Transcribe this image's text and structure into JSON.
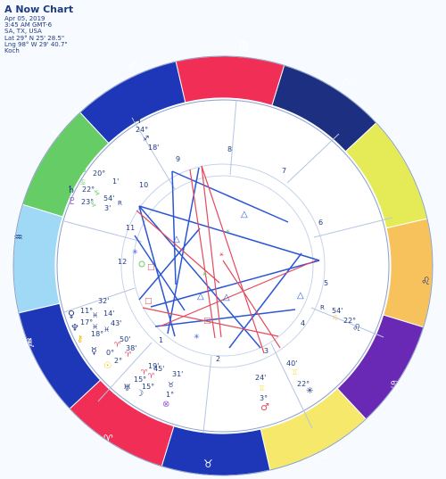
{
  "header": {
    "title": "A Now Chart",
    "date": "Apr 05, 2019",
    "time": "3:45 AM GMT-6",
    "place": "SA, TX, USA",
    "lat": "Lat 29° N 25' 28.5\"",
    "lng": "Lng 98° W 29' 40.7\"",
    "system": "Koch"
  },
  "colors": {
    "background": "#f7fbff",
    "ring_background": "#ffffff",
    "line": "#8ea1c7",
    "blue_aspect": "#2b56d4",
    "red_aspect": "#e24b5b",
    "text": "#1f3b80",
    "aries": "#f02e56",
    "taurus": "#1e36b8",
    "gemini": "#f6e86a",
    "cancer": "#6929b5",
    "leo": "#f7c25b",
    "virgo": "#9fd9f5",
    "libra": "#1e36b8",
    "scorpio": "#f02e56",
    "sagittarius": "#66cc66",
    "capricorn": "#e4eb57",
    "aquarius": "#1e36b8",
    "pisces": "#1d2f80"
  },
  "houses": [
    "1",
    "2",
    "3",
    "4",
    "5",
    "6",
    "7",
    "8",
    "9",
    "10",
    "11",
    "12"
  ],
  "signs": [
    {
      "name": "aries",
      "glyph": "♈"
    },
    {
      "name": "taurus",
      "glyph": "♉"
    },
    {
      "name": "gemini",
      "glyph": "♊"
    },
    {
      "name": "cancer",
      "glyph": "♋"
    },
    {
      "name": "leo",
      "glyph": "♌"
    },
    {
      "name": "virgo",
      "glyph": "♍"
    },
    {
      "name": "libra",
      "glyph": "♎"
    },
    {
      "name": "scorpio",
      "glyph": "♏"
    },
    {
      "name": "sagittarius",
      "glyph": "♐"
    },
    {
      "name": "capricorn",
      "glyph": "♑"
    },
    {
      "name": "aquarius",
      "glyph": "♒"
    },
    {
      "name": "pisces",
      "glyph": "♓"
    }
  ],
  "planets": [
    {
      "name": "jupiter",
      "glyph": "♃",
      "degree": "24°",
      "sign_glyph": "♐",
      "minutes": "18'"
    },
    {
      "name": "north-node",
      "glyph": "☊",
      "degree": "20°",
      "sign_glyph": "♋",
      "minutes": "1'"
    },
    {
      "name": "saturn",
      "glyph": "♄",
      "degree": "22°",
      "sign_glyph": "♑",
      "minutes": "54'"
    },
    {
      "name": "pluto",
      "glyph": "♇",
      "degree": "23°",
      "sign_glyph": "♑",
      "minutes": "3'"
    },
    {
      "name": "retrograde-mark-1",
      "glyph": "R",
      "degree": "",
      "sign_glyph": "",
      "minutes": ""
    },
    {
      "name": "venus",
      "glyph": "♀",
      "degree": "11°",
      "sign_glyph": "♓",
      "minutes": "32'"
    },
    {
      "name": "neptune",
      "glyph": "♆",
      "degree": "17°",
      "sign_glyph": "♓",
      "minutes": "14'"
    },
    {
      "name": "chiron",
      "glyph": "⚷",
      "degree": "18°",
      "sign_glyph": "♓",
      "minutes": "43'"
    },
    {
      "name": "mercury",
      "glyph": "☿",
      "degree": "0°",
      "sign_glyph": "♈",
      "minutes": "50'"
    },
    {
      "name": "sun",
      "glyph": "☉",
      "degree": "2°",
      "sign_glyph": "♈",
      "minutes": "38'"
    },
    {
      "name": "uranus",
      "glyph": "♅",
      "degree": "15°",
      "sign_glyph": "♈",
      "minutes": "19'"
    },
    {
      "name": "moon",
      "glyph": "☽",
      "degree": "15°",
      "sign_glyph": "♈",
      "minutes": "45'"
    },
    {
      "name": "part-of-fortune",
      "glyph": "⊗",
      "degree": "1°",
      "sign_glyph": "♉",
      "minutes": "31'"
    },
    {
      "name": "mars",
      "glyph": "♂",
      "degree": "3°",
      "sign_glyph": "♊",
      "minutes": "24'"
    },
    {
      "name": "vertex",
      "glyph": "✳",
      "degree": "22°",
      "sign_glyph": "♊",
      "minutes": "40'"
    },
    {
      "name": "lilith",
      "glyph": "♌",
      "degree": "22°",
      "sign_glyph": "♌",
      "minutes": "54'"
    },
    {
      "name": "retrograde-mark-2",
      "glyph": "R",
      "degree": "",
      "sign_glyph": "",
      "minutes": ""
    }
  ],
  "aspect_symbols": {
    "triangle": "△",
    "square": "□",
    "sextile": "✳",
    "conjunction": "⚹"
  }
}
